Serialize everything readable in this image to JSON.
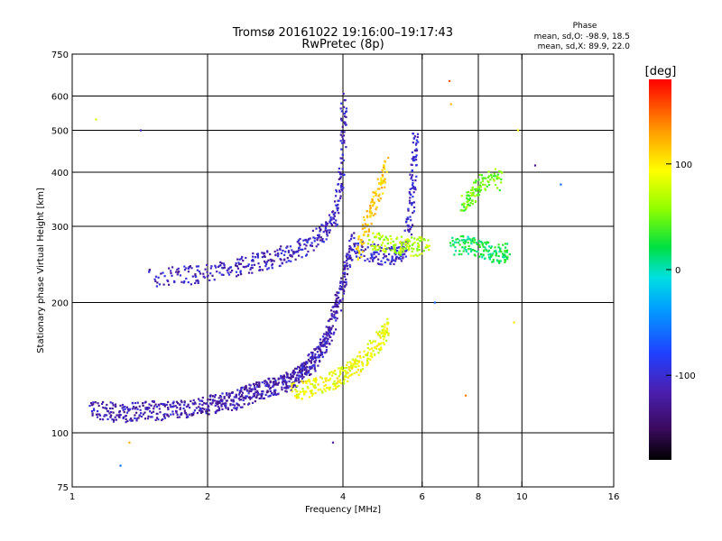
{
  "title_line1": "Tromsø 20161022 19:16:00–19:17:43",
  "title_line2": "RwPretec (8p)",
  "phase_box": {
    "heading": "Phase",
    "line_o": "mean, sd,O: -98.9, 18.5",
    "line_x": "mean, sd,X:  89.9, 22.0"
  },
  "colorbar": {
    "unit_label": "[deg]",
    "ticks": [
      {
        "value": 100,
        "label": "100"
      },
      {
        "value": 0,
        "label": "0"
      },
      {
        "value": -100,
        "label": "-100"
      }
    ],
    "range": [
      -180,
      180
    ]
  },
  "chart_data": {
    "type": "scatter",
    "title": "Tromsø 20161022 19:16:00–19:17:43",
    "subtitle": "RwPretec (8p)",
    "xlabel": "Frequency [MHz]",
    "ylabel": "Stationary phase Virtual Height [km]",
    "xscale": "log",
    "yscale": "log",
    "xlim": [
      1,
      16
    ],
    "ylim": [
      75,
      750
    ],
    "grid": true,
    "x_ticks": [
      {
        "value": 1,
        "label": "1"
      },
      {
        "value": 2,
        "label": "2"
      },
      {
        "value": 4,
        "label": "4"
      },
      {
        "value": 6,
        "label": "6"
      },
      {
        "value": 8,
        "label": "8"
      },
      {
        "value": 10,
        "label": "10"
      },
      {
        "value": 16,
        "label": "16"
      }
    ],
    "x_grid": [
      2,
      4,
      6,
      8,
      10
    ],
    "y_ticks": [
      {
        "value": 75,
        "label": "75"
      },
      {
        "value": 100,
        "label": "100"
      },
      {
        "value": 200,
        "label": "200"
      },
      {
        "value": 300,
        "label": "300"
      },
      {
        "value": 400,
        "label": "400"
      },
      {
        "value": 500,
        "label": "500"
      },
      {
        "value": 600,
        "label": "600"
      },
      {
        "value": 750,
        "label": "750"
      }
    ],
    "y_grid": [
      100,
      200,
      300,
      400,
      500,
      600
    ],
    "colorscale": "rainbow (black-purple-blue-cyan-green-yellow-orange-red)",
    "series": [
      {
        "trace": [
          [
            1.1,
            114
          ],
          [
            1.2,
            112
          ],
          [
            1.3,
            111
          ],
          [
            1.4,
            112
          ],
          [
            1.5,
            113
          ],
          [
            1.6,
            112
          ],
          [
            1.7,
            113
          ],
          [
            1.8,
            114
          ],
          [
            1.9,
            115
          ],
          [
            2.0,
            116
          ],
          [
            2.1,
            117
          ],
          [
            2.2,
            118
          ],
          [
            2.3,
            119
          ],
          [
            2.4,
            121
          ],
          [
            2.5,
            123
          ],
          [
            2.6,
            125
          ],
          [
            2.7,
            127
          ],
          [
            2.8,
            128
          ],
          [
            2.9,
            130
          ],
          [
            3.0,
            131
          ],
          [
            3.1,
            133
          ],
          [
            3.2,
            136
          ],
          [
            3.3,
            140
          ],
          [
            3.4,
            145
          ],
          [
            3.5,
            150
          ],
          [
            3.6,
            158
          ],
          [
            3.7,
            168
          ],
          [
            3.8,
            182
          ],
          [
            3.9,
            200
          ],
          [
            4.0,
            222
          ],
          [
            4.1,
            250
          ],
          [
            4.2,
            280
          ]
        ],
        "phase": -115
      },
      {
        "trace": [
          [
            3.1,
            124
          ],
          [
            3.3,
            126
          ],
          [
            3.5,
            128
          ],
          [
            3.7,
            131
          ],
          [
            3.9,
            134
          ],
          [
            4.1,
            138
          ],
          [
            4.3,
            143
          ],
          [
            4.5,
            150
          ],
          [
            4.7,
            158
          ],
          [
            4.9,
            168
          ],
          [
            5.0,
            178
          ]
        ],
        "phase": 90
      },
      {
        "trace": [
          [
            1.5,
            228
          ],
          [
            1.7,
            230
          ],
          [
            1.9,
            232
          ],
          [
            2.1,
            236
          ],
          [
            2.3,
            241
          ],
          [
            2.5,
            246
          ],
          [
            2.7,
            250
          ],
          [
            2.9,
            255
          ],
          [
            3.1,
            263
          ],
          [
            3.3,
            270
          ],
          [
            3.5,
            282
          ],
          [
            3.7,
            296
          ],
          [
            3.85,
            320
          ],
          [
            3.95,
            380
          ],
          [
            4.0,
            470
          ],
          [
            4.02,
            610
          ]
        ],
        "phase": -110
      },
      {
        "trace": [
          [
            4.2,
            270
          ],
          [
            4.5,
            262
          ],
          [
            4.8,
            258
          ],
          [
            5.1,
            256
          ],
          [
            5.4,
            258
          ],
          [
            5.6,
            290
          ],
          [
            5.7,
            350
          ],
          [
            5.75,
            420
          ],
          [
            5.8,
            500
          ]
        ],
        "phase": -105
      },
      {
        "trace": [
          [
            4.3,
            260
          ],
          [
            4.5,
            300
          ],
          [
            4.7,
            340
          ],
          [
            4.9,
            380
          ],
          [
            5.0,
            420
          ]
        ],
        "phase": 115
      },
      {
        "trace": [
          [
            4.6,
            280
          ],
          [
            4.9,
            275
          ],
          [
            5.2,
            272
          ],
          [
            5.5,
            270
          ],
          [
            5.8,
            268
          ],
          [
            6.2,
            272
          ]
        ],
        "phase": 70
      },
      {
        "trace": [
          [
            7.4,
            335
          ],
          [
            7.7,
            350
          ],
          [
            8.0,
            370
          ],
          [
            8.5,
            390
          ],
          [
            9.0,
            380
          ]
        ],
        "phase": 50
      },
      {
        "trace": [
          [
            7.0,
            270
          ],
          [
            7.5,
            272
          ],
          [
            8.0,
            268
          ],
          [
            8.5,
            262
          ],
          [
            9.0,
            258
          ],
          [
            9.3,
            262
          ]
        ],
        "phase": 20
      }
    ],
    "scattered_points": [
      {
        "x": 1.13,
        "y": 530,
        "phase": 80
      },
      {
        "x": 1.42,
        "y": 500,
        "phase": -110
      },
      {
        "x": 1.34,
        "y": 95,
        "phase": 125
      },
      {
        "x": 1.28,
        "y": 84,
        "phase": -60
      },
      {
        "x": 6.9,
        "y": 650,
        "phase": 150
      },
      {
        "x": 6.95,
        "y": 575,
        "phase": 120
      },
      {
        "x": 9.8,
        "y": 500,
        "phase": 100
      },
      {
        "x": 9.6,
        "y": 180,
        "phase": 105
      },
      {
        "x": 7.5,
        "y": 122,
        "phase": 140
      },
      {
        "x": 3.8,
        "y": 95,
        "phase": -120
      },
      {
        "x": 6.4,
        "y": 200,
        "phase": -60
      },
      {
        "x": 10.7,
        "y": 415,
        "phase": -130
      },
      {
        "x": 12.2,
        "y": 375,
        "phase": -60
      }
    ]
  }
}
